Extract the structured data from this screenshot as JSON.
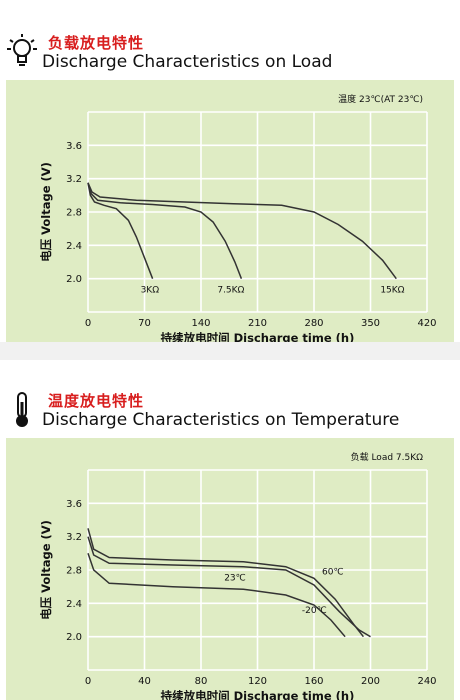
{
  "load_section": {
    "title_zh": "负载放电特性",
    "title_en": "Discharge Characteristics on Load",
    "icon": "lightbulb-icon",
    "condition_note": "温度 23℃(AT 23℃)"
  },
  "temp_section": {
    "title_zh": "温度放电特性",
    "title_en": "Discharge Characteristics on Temperature",
    "icon": "thermometer-icon",
    "condition_note": "负载  Load 7.5KΩ"
  },
  "chart_data": [
    {
      "type": "line",
      "title": "Discharge Characteristics on Load",
      "xlabel": "持续放电时间   Discharge time (h)",
      "ylabel": "电压  Voltage (V)",
      "xlim": [
        0,
        420
      ],
      "ylim": [
        1.6,
        4.0
      ],
      "xticks": [
        0,
        70,
        140,
        210,
        280,
        350,
        420
      ],
      "yticks": [
        2.0,
        2.4,
        2.8,
        3.2,
        3.6
      ],
      "grid": true,
      "colors": {
        "background": "#dfecc4",
        "grid": "#ffffff",
        "line": "#333333"
      },
      "series": [
        {
          "name": "3KΩ",
          "points": [
            [
              0,
              3.15
            ],
            [
              3,
              3.0
            ],
            [
              8,
              2.92
            ],
            [
              20,
              2.88
            ],
            [
              35,
              2.84
            ],
            [
              50,
              2.7
            ],
            [
              60,
              2.5
            ],
            [
              70,
              2.25
            ],
            [
              80,
              2.0
            ]
          ]
        },
        {
          "name": "7.5KΩ",
          "points": [
            [
              0,
              3.15
            ],
            [
              4,
              3.02
            ],
            [
              12,
              2.94
            ],
            [
              40,
              2.91
            ],
            [
              80,
              2.89
            ],
            [
              120,
              2.86
            ],
            [
              140,
              2.8
            ],
            [
              155,
              2.68
            ],
            [
              170,
              2.45
            ],
            [
              182,
              2.2
            ],
            [
              190,
              2.0
            ]
          ]
        },
        {
          "name": "15KΩ",
          "points": [
            [
              0,
              3.15
            ],
            [
              5,
              3.04
            ],
            [
              15,
              2.98
            ],
            [
              60,
              2.94
            ],
            [
              120,
              2.92
            ],
            [
              180,
              2.9
            ],
            [
              240,
              2.88
            ],
            [
              280,
              2.8
            ],
            [
              310,
              2.65
            ],
            [
              340,
              2.45
            ],
            [
              365,
              2.22
            ],
            [
              382,
              2.0
            ]
          ]
        }
      ]
    },
    {
      "type": "line",
      "title": "Discharge Characteristics on Temperature",
      "xlabel": "持续放电时间   Discharge time (h)",
      "ylabel": "电压  Voltage (V)",
      "xlim": [
        0,
        240
      ],
      "ylim": [
        1.6,
        4.0
      ],
      "xticks": [
        0,
        40,
        80,
        120,
        160,
        200,
        240
      ],
      "yticks": [
        2.0,
        2.4,
        2.8,
        3.2,
        3.6
      ],
      "grid": true,
      "colors": {
        "background": "#dfecc4",
        "grid": "#ffffff",
        "line": "#333333"
      },
      "series": [
        {
          "name": "60℃",
          "points": [
            [
              0,
              3.3
            ],
            [
              4,
              3.05
            ],
            [
              15,
              2.95
            ],
            [
              60,
              2.92
            ],
            [
              110,
              2.9
            ],
            [
              140,
              2.84
            ],
            [
              160,
              2.7
            ],
            [
              175,
              2.45
            ],
            [
              188,
              2.15
            ],
            [
              195,
              2.0
            ]
          ]
        },
        {
          "name": "23℃",
          "points": [
            [
              0,
              3.2
            ],
            [
              4,
              2.98
            ],
            [
              15,
              2.88
            ],
            [
              60,
              2.86
            ],
            [
              110,
              2.84
            ],
            [
              140,
              2.8
            ],
            [
              160,
              2.62
            ],
            [
              178,
              2.3
            ],
            [
              192,
              2.08
            ],
            [
              200,
              2.0
            ]
          ]
        },
        {
          "name": "-20℃",
          "points": [
            [
              0,
              3.0
            ],
            [
              4,
              2.8
            ],
            [
              15,
              2.64
            ],
            [
              60,
              2.6
            ],
            [
              110,
              2.57
            ],
            [
              140,
              2.5
            ],
            [
              160,
              2.38
            ],
            [
              172,
              2.2
            ],
            [
              182,
              2.0
            ]
          ]
        }
      ]
    }
  ]
}
